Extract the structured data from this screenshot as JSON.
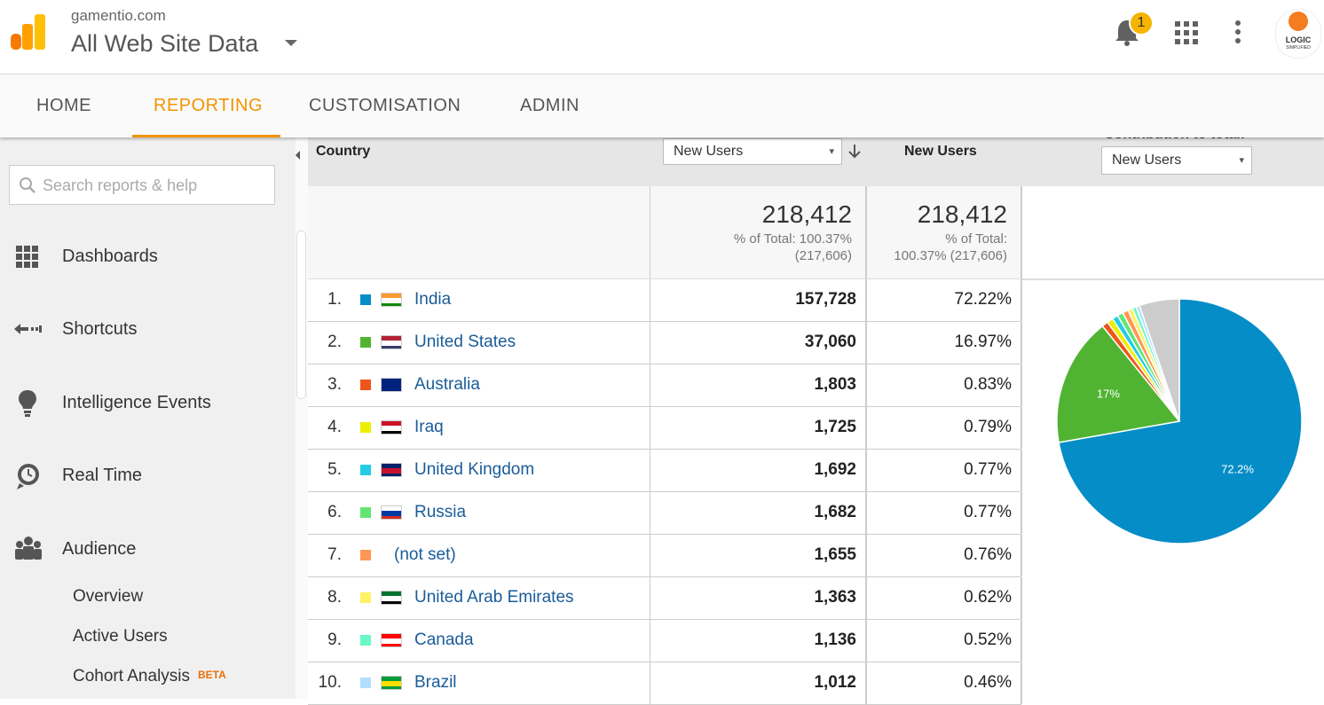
{
  "header": {
    "site": "gamentio.com",
    "property": "All Web Site Data",
    "notification_count": "1",
    "avatar_lines": [
      "LOGIC",
      "SIMPLIFIED"
    ]
  },
  "nav": [
    "HOME",
    "REPORTING",
    "CUSTOMISATION",
    "ADMIN"
  ],
  "sidebar": {
    "search_placeholder": "Search reports & help",
    "items": [
      "Dashboards",
      "Shortcuts",
      "Intelligence Events",
      "Real Time",
      "Audience"
    ],
    "subitems": [
      "Overview",
      "Active Users",
      "Cohort Analysis"
    ],
    "beta_badge": "BETA"
  },
  "table": {
    "headers": {
      "dimension": "Country",
      "metric_selector": "New Users",
      "metric": "New Users",
      "contribution": "Contribution to total:",
      "contribution_selector": "New Users"
    },
    "totals": {
      "value": "218,412",
      "note_lines": [
        "% of Total: 100.37%",
        "(217,606)"
      ],
      "metric_value": "218,412",
      "metric_note_lines": [
        "% of Total:",
        "100.37% (217,606)"
      ]
    },
    "rows": [
      {
        "rank": "1.",
        "country": "India",
        "new_users": "157,728",
        "share": "72.22%",
        "flag": [
          "#ff9933",
          "#ffffff",
          "#138808"
        ]
      },
      {
        "rank": "2.",
        "country": "United States",
        "new_users": "37,060",
        "share": "16.97%",
        "flag": [
          "#b22234",
          "#ffffff",
          "#3c3b6e"
        ]
      },
      {
        "rank": "3.",
        "country": "Australia",
        "new_users": "1,803",
        "share": "0.83%",
        "flag": [
          "#00247d",
          "#00247d",
          "#00247d"
        ]
      },
      {
        "rank": "4.",
        "country": "Iraq",
        "new_users": "1,725",
        "share": "0.79%",
        "flag": [
          "#ce1126",
          "#ffffff",
          "#000000"
        ]
      },
      {
        "rank": "5.",
        "country": "United Kingdom",
        "new_users": "1,692",
        "share": "0.77%",
        "flag": [
          "#012169",
          "#c8102e",
          "#012169"
        ]
      },
      {
        "rank": "6.",
        "country": "Russia",
        "new_users": "1,682",
        "share": "0.77%",
        "flag": [
          "#ffffff",
          "#0039a6",
          "#d52b1e"
        ]
      },
      {
        "rank": "7.",
        "country": "(not set)",
        "new_users": "1,655",
        "share": "0.76%",
        "flag": null
      },
      {
        "rank": "8.",
        "country": "United Arab Emirates",
        "new_users": "1,363",
        "share": "0.62%",
        "flag": [
          "#00732f",
          "#ffffff",
          "#000000"
        ]
      },
      {
        "rank": "9.",
        "country": "Canada",
        "new_users": "1,136",
        "share": "0.52%",
        "flag": [
          "#ff0000",
          "#ffffff",
          "#ff0000"
        ]
      },
      {
        "rank": "10.",
        "country": "Brazil",
        "new_users": "1,012",
        "share": "0.46%",
        "flag": [
          "#009c3b",
          "#ffdf00",
          "#009c3b"
        ]
      }
    ]
  },
  "pie": {
    "type": "pie",
    "values": [
      72.22,
      16.97,
      0.83,
      0.79,
      0.77,
      0.77,
      0.76,
      0.62,
      0.52,
      0.46,
      5.29
    ],
    "colors": [
      "#058dc7",
      "#50b432",
      "#ed561b",
      "#edef00",
      "#24cbe5",
      "#64e572",
      "#ff9655",
      "#fff263",
      "#6af9c4",
      "#b2deff",
      "#cccccc"
    ],
    "slice_labels": [
      {
        "slice": 0,
        "label": "72.2%"
      },
      {
        "slice": 1,
        "label": "17%"
      }
    ]
  }
}
